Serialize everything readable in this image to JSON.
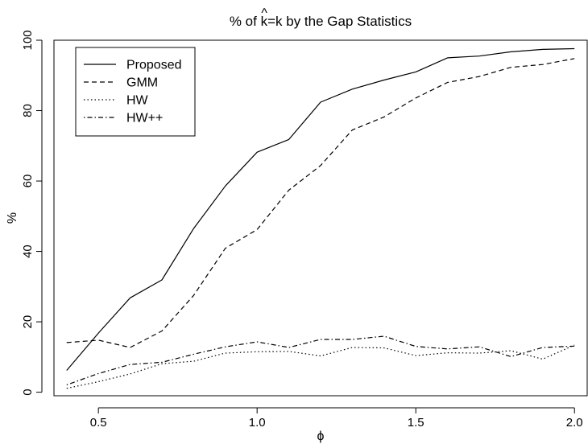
{
  "chart_data": {
    "type": "line",
    "title": "% of k̂=k by the Gap Statistics",
    "title_parts": {
      "prefix": "% of ",
      "hat_letter": "k",
      "hat_mark": "^",
      "suffix": "=k by the Gap Statistics"
    },
    "xlabel": "ϕ",
    "ylabel": "%",
    "xlim": [
      0.36,
      2.04
    ],
    "ylim": [
      -1,
      100
    ],
    "x_ticks": [
      0.5,
      1.0,
      1.5,
      2.0
    ],
    "x_tick_labels": [
      "0.5",
      "1.0",
      "1.5",
      "2.0"
    ],
    "y_ticks": [
      0,
      20,
      40,
      60,
      80,
      100
    ],
    "y_tick_labels": [
      "0",
      "20",
      "40",
      "60",
      "80",
      "100"
    ],
    "grid": false,
    "legend_position": "top-left",
    "x": [
      0.4,
      0.5,
      0.6,
      0.7,
      0.8,
      0.9,
      1.0,
      1.1,
      1.2,
      1.3,
      1.4,
      1.5,
      1.6,
      1.7,
      1.8,
      1.9,
      2.0
    ],
    "series": [
      {
        "name": "Proposed",
        "line_style": "solid",
        "values": [
          6.2,
          16.8,
          26.8,
          31.9,
          46.5,
          58.6,
          68.2,
          71.8,
          82.4,
          86.1,
          88.7,
          91.0,
          95.0,
          95.5,
          96.7,
          97.4,
          97.6
        ]
      },
      {
        "name": "GMM",
        "line_style": "dashed",
        "values": [
          14.1,
          14.8,
          12.7,
          17.4,
          27.5,
          40.9,
          46.2,
          57.4,
          64.4,
          74.5,
          78.2,
          83.6,
          88.0,
          89.7,
          92.3,
          93.1,
          94.8
        ]
      },
      {
        "name": "HW",
        "line_style": "dotted",
        "values": [
          1.1,
          3.0,
          5.2,
          8.1,
          8.8,
          11.1,
          11.5,
          11.6,
          10.3,
          12.7,
          12.6,
          10.4,
          11.2,
          11.1,
          11.8,
          9.4,
          13.4
        ]
      },
      {
        "name": "HW++",
        "line_style": "dashdot",
        "values": [
          2.1,
          5.3,
          7.9,
          8.5,
          10.8,
          12.9,
          14.3,
          12.7,
          15.0,
          15.0,
          15.9,
          13.0,
          12.3,
          12.9,
          10.1,
          12.7,
          13.1
        ]
      }
    ]
  }
}
